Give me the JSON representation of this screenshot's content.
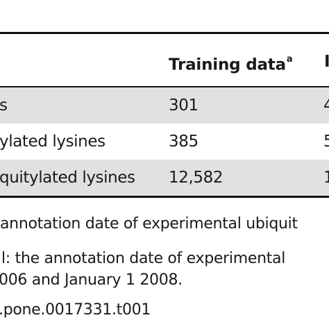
{
  "table": {
    "header": {
      "training_label": "Training data",
      "training_sup": "a",
      "next_col_fragment": "I"
    },
    "rows": [
      {
        "label": "s",
        "training": "301",
        "next": "4",
        "shaded": true
      },
      {
        "label": "ylated lysines",
        "training": "385",
        "next": "5",
        "shaded": false
      },
      {
        "label": "quitylated lysines",
        "training": "12,582",
        "next": "1",
        "shaded": true
      }
    ]
  },
  "footnotes": {
    "line1": "annotation date of experimental ubiquit",
    "line2": "l: the annotation date of experimental",
    "line3": "006 and January 1 2008.",
    "line4": ".pone.0017331.t001"
  }
}
